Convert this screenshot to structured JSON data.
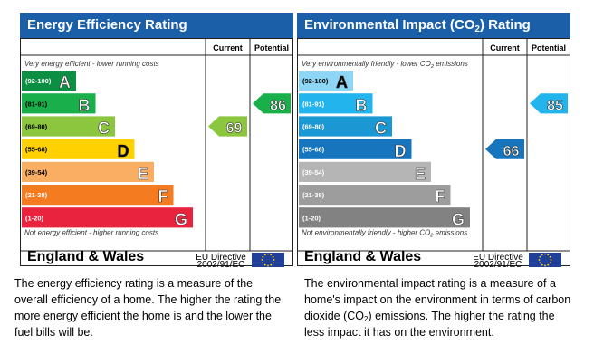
{
  "chart_data": [
    {
      "type": "bar",
      "title": "Energy Efficiency Rating",
      "columns": [
        "Current",
        "Potential"
      ],
      "top_note": "Very energy efficient - lower running costs",
      "bottom_note": "Not energy efficient - higher running costs",
      "bands": [
        {
          "range": "(92-100)",
          "letter": "A",
          "color": "#0c8e43"
        },
        {
          "range": "(81-91)",
          "letter": "B",
          "color": "#19b04b"
        },
        {
          "range": "(69-80)",
          "letter": "C",
          "color": "#8cc63e"
        },
        {
          "range": "(55-68)",
          "letter": "D",
          "color": "#ffd100"
        },
        {
          "range": "(39-54)",
          "letter": "E",
          "color": "#f9ae63"
        },
        {
          "range": "(21-38)",
          "letter": "F",
          "color": "#f47b20"
        },
        {
          "range": "(1-20)",
          "letter": "G",
          "color": "#e9233d"
        }
      ],
      "current": {
        "value": 69,
        "band": "C",
        "color": "#8cc63e"
      },
      "potential": {
        "value": 86,
        "band": "B",
        "color": "#19b04b"
      },
      "footer_region": "England & Wales",
      "footer_directive_line1": "EU Directive",
      "footer_directive_line2": "2002/91/EC"
    },
    {
      "type": "bar",
      "title": "Environmental Impact (CO",
      "title_sub": "2",
      "title_end": ") Rating",
      "columns": [
        "Current",
        "Potential"
      ],
      "top_note": "Very environmentally friendly - lower CO",
      "top_note_sub": "2",
      "top_note_end": " emissions",
      "bottom_note": "Not environmentally friendly - higher CO",
      "bottom_note_sub": "2",
      "bottom_note_end": " emissions",
      "bands": [
        {
          "range": "(92-100)",
          "letter": "A",
          "color": "#8dd6f5"
        },
        {
          "range": "(81-91)",
          "letter": "B",
          "color": "#22b4ec"
        },
        {
          "range": "(69-80)",
          "letter": "C",
          "color": "#1b97d3"
        },
        {
          "range": "(55-68)",
          "letter": "D",
          "color": "#1675bc"
        },
        {
          "range": "(39-54)",
          "letter": "E",
          "color": "#b5b5b5"
        },
        {
          "range": "(21-38)",
          "letter": "F",
          "color": "#9d9d9d"
        },
        {
          "range": "(1-20)",
          "letter": "G",
          "color": "#828282"
        }
      ],
      "current": {
        "value": 66,
        "band": "D",
        "color": "#1675bc"
      },
      "potential": {
        "value": 85,
        "band": "B",
        "color": "#22b4ec"
      },
      "footer_region": "England & Wales",
      "footer_directive_line1": "EU Directive",
      "footer_directive_line2": "2002/91/EC"
    }
  ],
  "explanations": {
    "energy": "The energy efficiency rating is a measure of the overall efficiency of a home. The higher the rating the more energy efficient the home is and the lower the fuel bills will be.",
    "environment_before": "The environmental impact rating is a measure of a home's impact on the environment in terms of carbon dioxide (CO",
    "environment_sub": "2",
    "environment_after": ") emissions. The higher the rating the less impact it has on the environment."
  },
  "colors": {
    "title_bar": "#1b5fa8",
    "eu_flag": "#1f3f99",
    "eu_stars": "#ffde00"
  }
}
